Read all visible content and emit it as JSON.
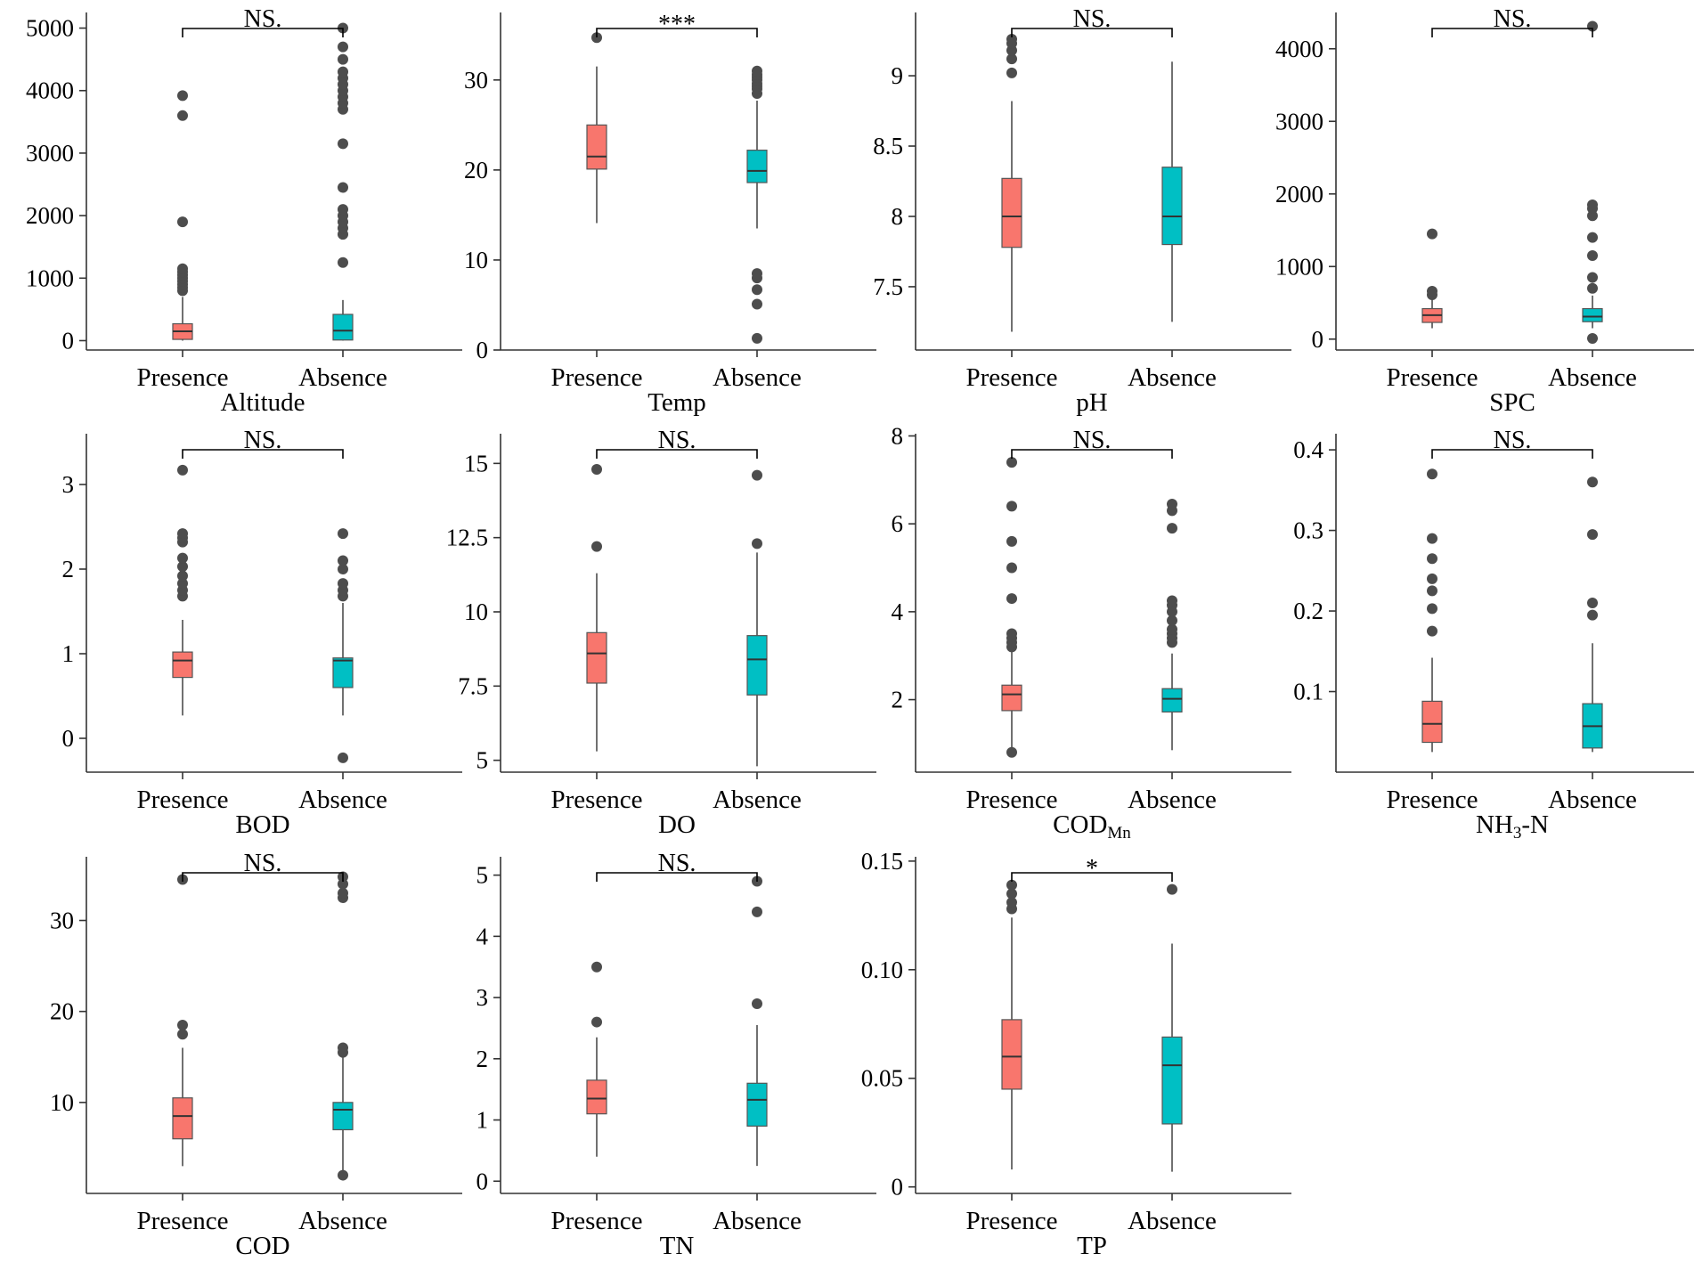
{
  "colors": {
    "presence": "#F8766D",
    "absence": "#00BFC4",
    "outlier": "#4d4d4d"
  },
  "chart_data": [
    {
      "type": "box",
      "title": "Altitude",
      "categories": [
        "Presence",
        "Absence"
      ],
      "significance": "NS.",
      "ylim": [
        -150,
        5250
      ],
      "yticks": [
        0,
        1000,
        2000,
        3000,
        4000,
        5000
      ],
      "boxes": [
        {
          "q1": 20,
          "median": 150,
          "q3": 270,
          "whisker_low": 0,
          "whisker_high": 700,
          "outliers": [
            800,
            850,
            900,
            950,
            1000,
            1050,
            1100,
            1150,
            1900,
            3600,
            3920
          ]
        },
        {
          "q1": 10,
          "median": 160,
          "q3": 420,
          "whisker_low": 0,
          "whisker_high": 650,
          "outliers": [
            1250,
            1700,
            1800,
            1900,
            2000,
            2100,
            2450,
            3150,
            3700,
            3800,
            3900,
            4000,
            4100,
            4200,
            4300,
            4500,
            4700,
            5000
          ]
        }
      ]
    },
    {
      "type": "box",
      "title": "Temp",
      "categories": [
        "Presence",
        "Absence"
      ],
      "significance": "***",
      "ylim": [
        0,
        37.5
      ],
      "yticks": [
        0,
        10,
        20,
        30
      ],
      "boxes": [
        {
          "q1": 20.1,
          "median": 21.5,
          "q3": 25.0,
          "whisker_low": 14.1,
          "whisker_high": 31.5,
          "outliers": [
            34.7
          ]
        },
        {
          "q1": 18.6,
          "median": 19.9,
          "q3": 22.2,
          "whisker_low": 13.5,
          "whisker_high": 27.7,
          "outliers": [
            1.3,
            5.1,
            6.7,
            8.0,
            8.5,
            28.5,
            29.0,
            29.3,
            29.6,
            30.0,
            30.3,
            30.6,
            31.0
          ]
        }
      ]
    },
    {
      "type": "box",
      "title": "pH",
      "categories": [
        "Presence",
        "Absence"
      ],
      "significance": "NS.",
      "ylim": [
        7.05,
        9.45
      ],
      "yticks": [
        7.5,
        8.0,
        8.5,
        9.0
      ],
      "boxes": [
        {
          "q1": 7.78,
          "median": 8.0,
          "q3": 8.27,
          "whisker_low": 7.18,
          "whisker_high": 8.82,
          "outliers": [
            9.02,
            9.12,
            9.18,
            9.23,
            9.26
          ]
        },
        {
          "q1": 7.8,
          "median": 8.0,
          "q3": 8.35,
          "whisker_low": 7.25,
          "whisker_high": 9.1,
          "outliers": []
        }
      ]
    },
    {
      "type": "box",
      "title": "SPC",
      "categories": [
        "Presence",
        "Absence"
      ],
      "significance": "NS.",
      "ylim": [
        -150,
        4500
      ],
      "yticks": [
        0,
        1000,
        2000,
        3000,
        4000
      ],
      "boxes": [
        {
          "q1": 230,
          "median": 330,
          "q3": 420,
          "whisker_low": 150,
          "whisker_high": 560,
          "outliers": [
            610,
            660,
            1450
          ]
        },
        {
          "q1": 240,
          "median": 310,
          "q3": 420,
          "whisker_low": 150,
          "whisker_high": 600,
          "outliers": [
            10,
            700,
            850,
            1150,
            1400,
            1700,
            1800,
            1850,
            4310
          ]
        }
      ]
    },
    {
      "type": "box",
      "title": "BOD",
      "categories": [
        "Presence",
        "Absence"
      ],
      "significance": "NS.",
      "ylim": [
        -0.4,
        3.6
      ],
      "yticks": [
        0,
        1,
        2,
        3
      ],
      "boxes": [
        {
          "q1": 0.72,
          "median": 0.92,
          "q3": 1.02,
          "whisker_low": 0.27,
          "whisker_high": 1.4,
          "outliers": [
            1.68,
            1.75,
            1.83,
            1.92,
            2.03,
            2.13,
            2.32,
            2.37,
            2.42,
            3.17
          ]
        },
        {
          "q1": 0.6,
          "median": 0.92,
          "q3": 0.95,
          "whisker_low": 0.27,
          "whisker_high": 1.6,
          "outliers": [
            -0.23,
            1.68,
            1.75,
            1.83,
            2.0,
            2.1,
            2.42
          ]
        }
      ]
    },
    {
      "type": "box",
      "title": "DO",
      "categories": [
        "Presence",
        "Absence"
      ],
      "significance": "NS.",
      "ylim": [
        4.6,
        16.0
      ],
      "yticks": [
        5.0,
        7.5,
        10.0,
        12.5,
        15.0
      ],
      "boxes": [
        {
          "q1": 7.6,
          "median": 8.6,
          "q3": 9.3,
          "whisker_low": 5.3,
          "whisker_high": 11.3,
          "outliers": [
            12.2,
            14.8
          ]
        },
        {
          "q1": 7.2,
          "median": 8.4,
          "q3": 9.2,
          "whisker_low": 4.8,
          "whisker_high": 12.0,
          "outliers": [
            12.3,
            14.6
          ]
        }
      ]
    },
    {
      "type": "box",
      "title": "COD",
      "title_sub": "Mn",
      "categories": [
        "Presence",
        "Absence"
      ],
      "significance": "NS.",
      "ylim": [
        0.35,
        8.05
      ],
      "yticks": [
        2,
        4,
        6,
        8
      ],
      "boxes": [
        {
          "q1": 1.75,
          "median": 2.12,
          "q3": 2.33,
          "whisker_low": 0.9,
          "whisker_high": 3.1,
          "outliers": [
            0.8,
            3.2,
            3.3,
            3.4,
            3.5,
            4.3,
            5.0,
            5.6,
            6.4,
            7.4
          ]
        },
        {
          "q1": 1.72,
          "median": 2.02,
          "q3": 2.25,
          "whisker_low": 0.85,
          "whisker_high": 3.05,
          "outliers": [
            3.3,
            3.4,
            3.5,
            3.6,
            3.8,
            4.0,
            4.15,
            4.25,
            5.9,
            6.3,
            6.45
          ]
        }
      ]
    },
    {
      "type": "box",
      "title": "NH",
      "title_sub": "3",
      "title_suffix": "-N",
      "categories": [
        "Presence",
        "Absence"
      ],
      "significance": "NS.",
      "ylim": [
        0.0,
        0.42
      ],
      "yticks": [
        0.1,
        0.2,
        0.3,
        0.4
      ],
      "boxes": [
        {
          "q1": 0.037,
          "median": 0.06,
          "q3": 0.088,
          "whisker_low": 0.025,
          "whisker_high": 0.142,
          "outliers": [
            0.175,
            0.203,
            0.225,
            0.24,
            0.265,
            0.29,
            0.37
          ]
        },
        {
          "q1": 0.03,
          "median": 0.057,
          "q3": 0.085,
          "whisker_low": 0.025,
          "whisker_high": 0.16,
          "outliers": [
            0.195,
            0.21,
            0.295,
            0.36
          ]
        }
      ]
    },
    {
      "type": "box",
      "title": "COD",
      "categories": [
        "Presence",
        "Absence"
      ],
      "significance": "NS.",
      "ylim": [
        0,
        37
      ],
      "yticks": [
        10,
        20,
        30
      ],
      "boxes": [
        {
          "q1": 6.0,
          "median": 8.5,
          "q3": 10.5,
          "whisker_low": 3.0,
          "whisker_high": 16.0,
          "outliers": [
            17.5,
            18.5,
            34.5
          ]
        },
        {
          "q1": 7.0,
          "median": 9.2,
          "q3": 10.0,
          "whisker_low": 2.5,
          "whisker_high": 15.0,
          "outliers": [
            2.0,
            15.5,
            16.0,
            32.5,
            33.0,
            34.0,
            34.8
          ]
        }
      ]
    },
    {
      "type": "box",
      "title": "TN",
      "categories": [
        "Presence",
        "Absence"
      ],
      "significance": "NS.",
      "ylim": [
        -0.2,
        5.3
      ],
      "yticks": [
        0,
        1,
        2,
        3,
        4,
        5
      ],
      "boxes": [
        {
          "q1": 1.1,
          "median": 1.35,
          "q3": 1.65,
          "whisker_low": 0.4,
          "whisker_high": 2.35,
          "outliers": [
            2.6,
            3.5
          ]
        },
        {
          "q1": 0.9,
          "median": 1.33,
          "q3": 1.6,
          "whisker_low": 0.25,
          "whisker_high": 2.55,
          "outliers": [
            2.9,
            4.4,
            4.9
          ]
        }
      ]
    },
    {
      "type": "box",
      "title": "TP",
      "categories": [
        "Presence",
        "Absence"
      ],
      "significance": "*",
      "ylim": [
        -0.003,
        0.152
      ],
      "yticks": [
        0,
        0.05,
        0.1,
        0.15
      ],
      "ytick_labels": [
        "0",
        "0.05",
        "0.10",
        "0.15"
      ],
      "boxes": [
        {
          "q1": 0.045,
          "median": 0.06,
          "q3": 0.077,
          "whisker_low": 0.008,
          "whisker_high": 0.124,
          "outliers": [
            0.128,
            0.131,
            0.135,
            0.139
          ]
        },
        {
          "q1": 0.029,
          "median": 0.056,
          "q3": 0.069,
          "whisker_low": 0.007,
          "whisker_high": 0.112,
          "outliers": [
            0.137
          ]
        }
      ]
    }
  ]
}
